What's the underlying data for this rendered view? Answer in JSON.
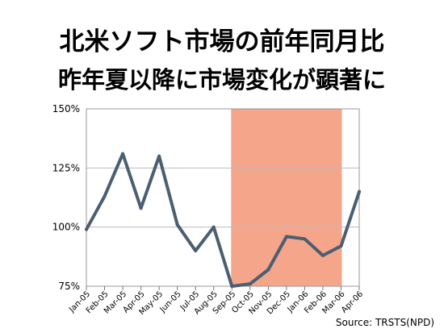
{
  "header": {
    "title": "北米ソフト市場の前年同月比",
    "subtitle": "昨年夏以降に市場変化が顕著に"
  },
  "source": "Source: TRSTS(NPD)",
  "chart_data": {
    "type": "line",
    "categories": [
      "Jan-05",
      "Feb-05",
      "Mar-05",
      "Apr-05",
      "May-05",
      "Jun-05",
      "Jul-05",
      "Aug-05",
      "Sep-05",
      "Oct-05",
      "Nov-05",
      "Dec-05",
      "Jan-06",
      "Feb-06",
      "Mar-06",
      "Apr-06"
    ],
    "series": [
      {
        "values": [
          99,
          113,
          131,
          108,
          130,
          101,
          90,
          100,
          75,
          76,
          82,
          96,
          95,
          88,
          92,
          115
        ]
      }
    ],
    "yticks": [
      "75%",
      "100%",
      "125%",
      "150%"
    ],
    "ylim": [
      75,
      150
    ],
    "grid": true,
    "highlight": {
      "from": "Sep-05",
      "to": "Mar-06",
      "color": "#f4a58a"
    },
    "line_color": "#4a5f72"
  }
}
